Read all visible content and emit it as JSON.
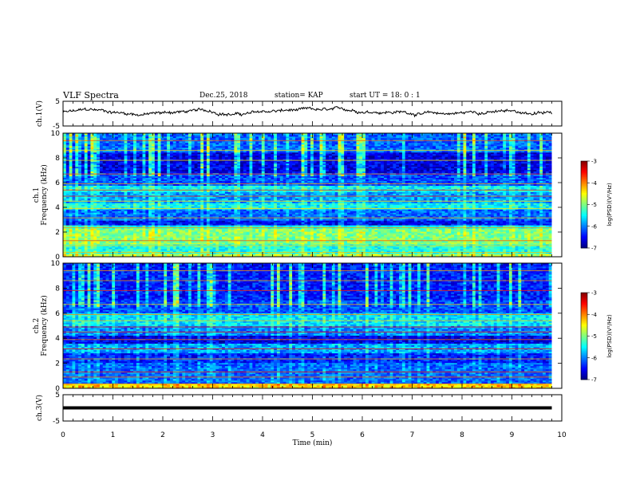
{
  "header": {
    "title": "VLF Spectra",
    "date": "Dec.25, 2018",
    "station": "station= KAP",
    "start": "start  UT =  18: 0  : 1"
  },
  "chart_data": [
    {
      "id": "ch1-voltage",
      "type": "line",
      "ylabel": "ch.1(V)",
      "yticks": [
        "5",
        "-5"
      ],
      "ylim": [
        -5,
        5
      ],
      "xlim": [
        0,
        10
      ],
      "x_end": 9.8,
      "level_approx": 0.5,
      "amplitude_approx": 2.5,
      "color": "#000000"
    },
    {
      "id": "ch1-spectrogram",
      "type": "heatmap",
      "ylabel": "ch.1\nFrequency (kHz)",
      "ylabel_line1": "ch.1",
      "ylabel_line2": "Frequency  (kHz)",
      "yticks": [
        "0",
        "2",
        "4",
        "6",
        "8",
        "10"
      ],
      "ylim": [
        0,
        10
      ],
      "xlim": [
        0,
        10
      ],
      "x_end": 9.8,
      "colorbar": {
        "label": "log(PSD)(V²/Hz)",
        "ticks": [
          "-3",
          "-4",
          "-5",
          "-6",
          "-7"
        ],
        "range": [
          -7,
          -3
        ]
      },
      "bands": [
        {
          "f": [
            0.0,
            0.3
          ],
          "v": -4.8
        },
        {
          "f": [
            0.3,
            1.0
          ],
          "v": -5.4
        },
        {
          "f": [
            1.0,
            2.3
          ],
          "v": -5.0
        },
        {
          "f": [
            2.3,
            2.6
          ],
          "v": -5.5
        },
        {
          "f": [
            2.6,
            3.0
          ],
          "v": -6.5
        },
        {
          "f": [
            3.0,
            3.8
          ],
          "v": -6.1
        },
        {
          "f": [
            3.8,
            4.3
          ],
          "v": -5.5
        },
        {
          "f": [
            4.3,
            5.2
          ],
          "v": -5.9
        },
        {
          "f": [
            5.2,
            5.8
          ],
          "v": -5.5
        },
        {
          "f": [
            5.8,
            6.8
          ],
          "v": -6.2
        },
        {
          "f": [
            6.8,
            8.5
          ],
          "v": -6.6
        },
        {
          "f": [
            8.5,
            10.0
          ],
          "v": -6.1
        }
      ]
    },
    {
      "id": "ch2-spectrogram",
      "type": "heatmap",
      "ylabel": "ch.2\nFrequency (kHz)",
      "ylabel_line1": "ch.2",
      "ylabel_line2": "Frequency  (kHz)",
      "yticks": [
        "0",
        "2",
        "4",
        "6",
        "8",
        "10"
      ],
      "ylim": [
        0,
        10
      ],
      "xlim": [
        0,
        10
      ],
      "x_end": 9.8,
      "colorbar": {
        "label": "log(PSD)(V²/Hz)",
        "ticks": [
          "-3",
          "-4",
          "-5",
          "-6",
          "-7"
        ],
        "range": [
          -7,
          -3
        ]
      },
      "bands": [
        {
          "f": [
            0.0,
            0.4
          ],
          "v": -4.4
        },
        {
          "f": [
            0.4,
            2.0
          ],
          "v": -6.1
        },
        {
          "f": [
            2.0,
            2.8
          ],
          "v": -6.4
        },
        {
          "f": [
            2.8,
            3.6
          ],
          "v": -5.9
        },
        {
          "f": [
            3.6,
            4.2
          ],
          "v": -6.6
        },
        {
          "f": [
            4.2,
            5.0
          ],
          "v": -6.0
        },
        {
          "f": [
            5.0,
            6.0
          ],
          "v": -5.6
        },
        {
          "f": [
            6.0,
            7.0
          ],
          "v": -6.2
        },
        {
          "f": [
            7.0,
            10.0
          ],
          "v": -6.4
        }
      ]
    },
    {
      "id": "ch3-voltage",
      "type": "line",
      "ylabel": "ch.3(V)",
      "yticks": [
        "5",
        "-5"
      ],
      "ylim": [
        -5,
        5
      ],
      "xlim": [
        0,
        10
      ],
      "x_end": 9.8,
      "level_approx": 0,
      "color": "#000000"
    }
  ],
  "xaxis": {
    "label": "Time  (min)",
    "ticks": [
      "0",
      "1",
      "2",
      "3",
      "4",
      "5",
      "6",
      "7",
      "8",
      "9",
      "10"
    ]
  }
}
